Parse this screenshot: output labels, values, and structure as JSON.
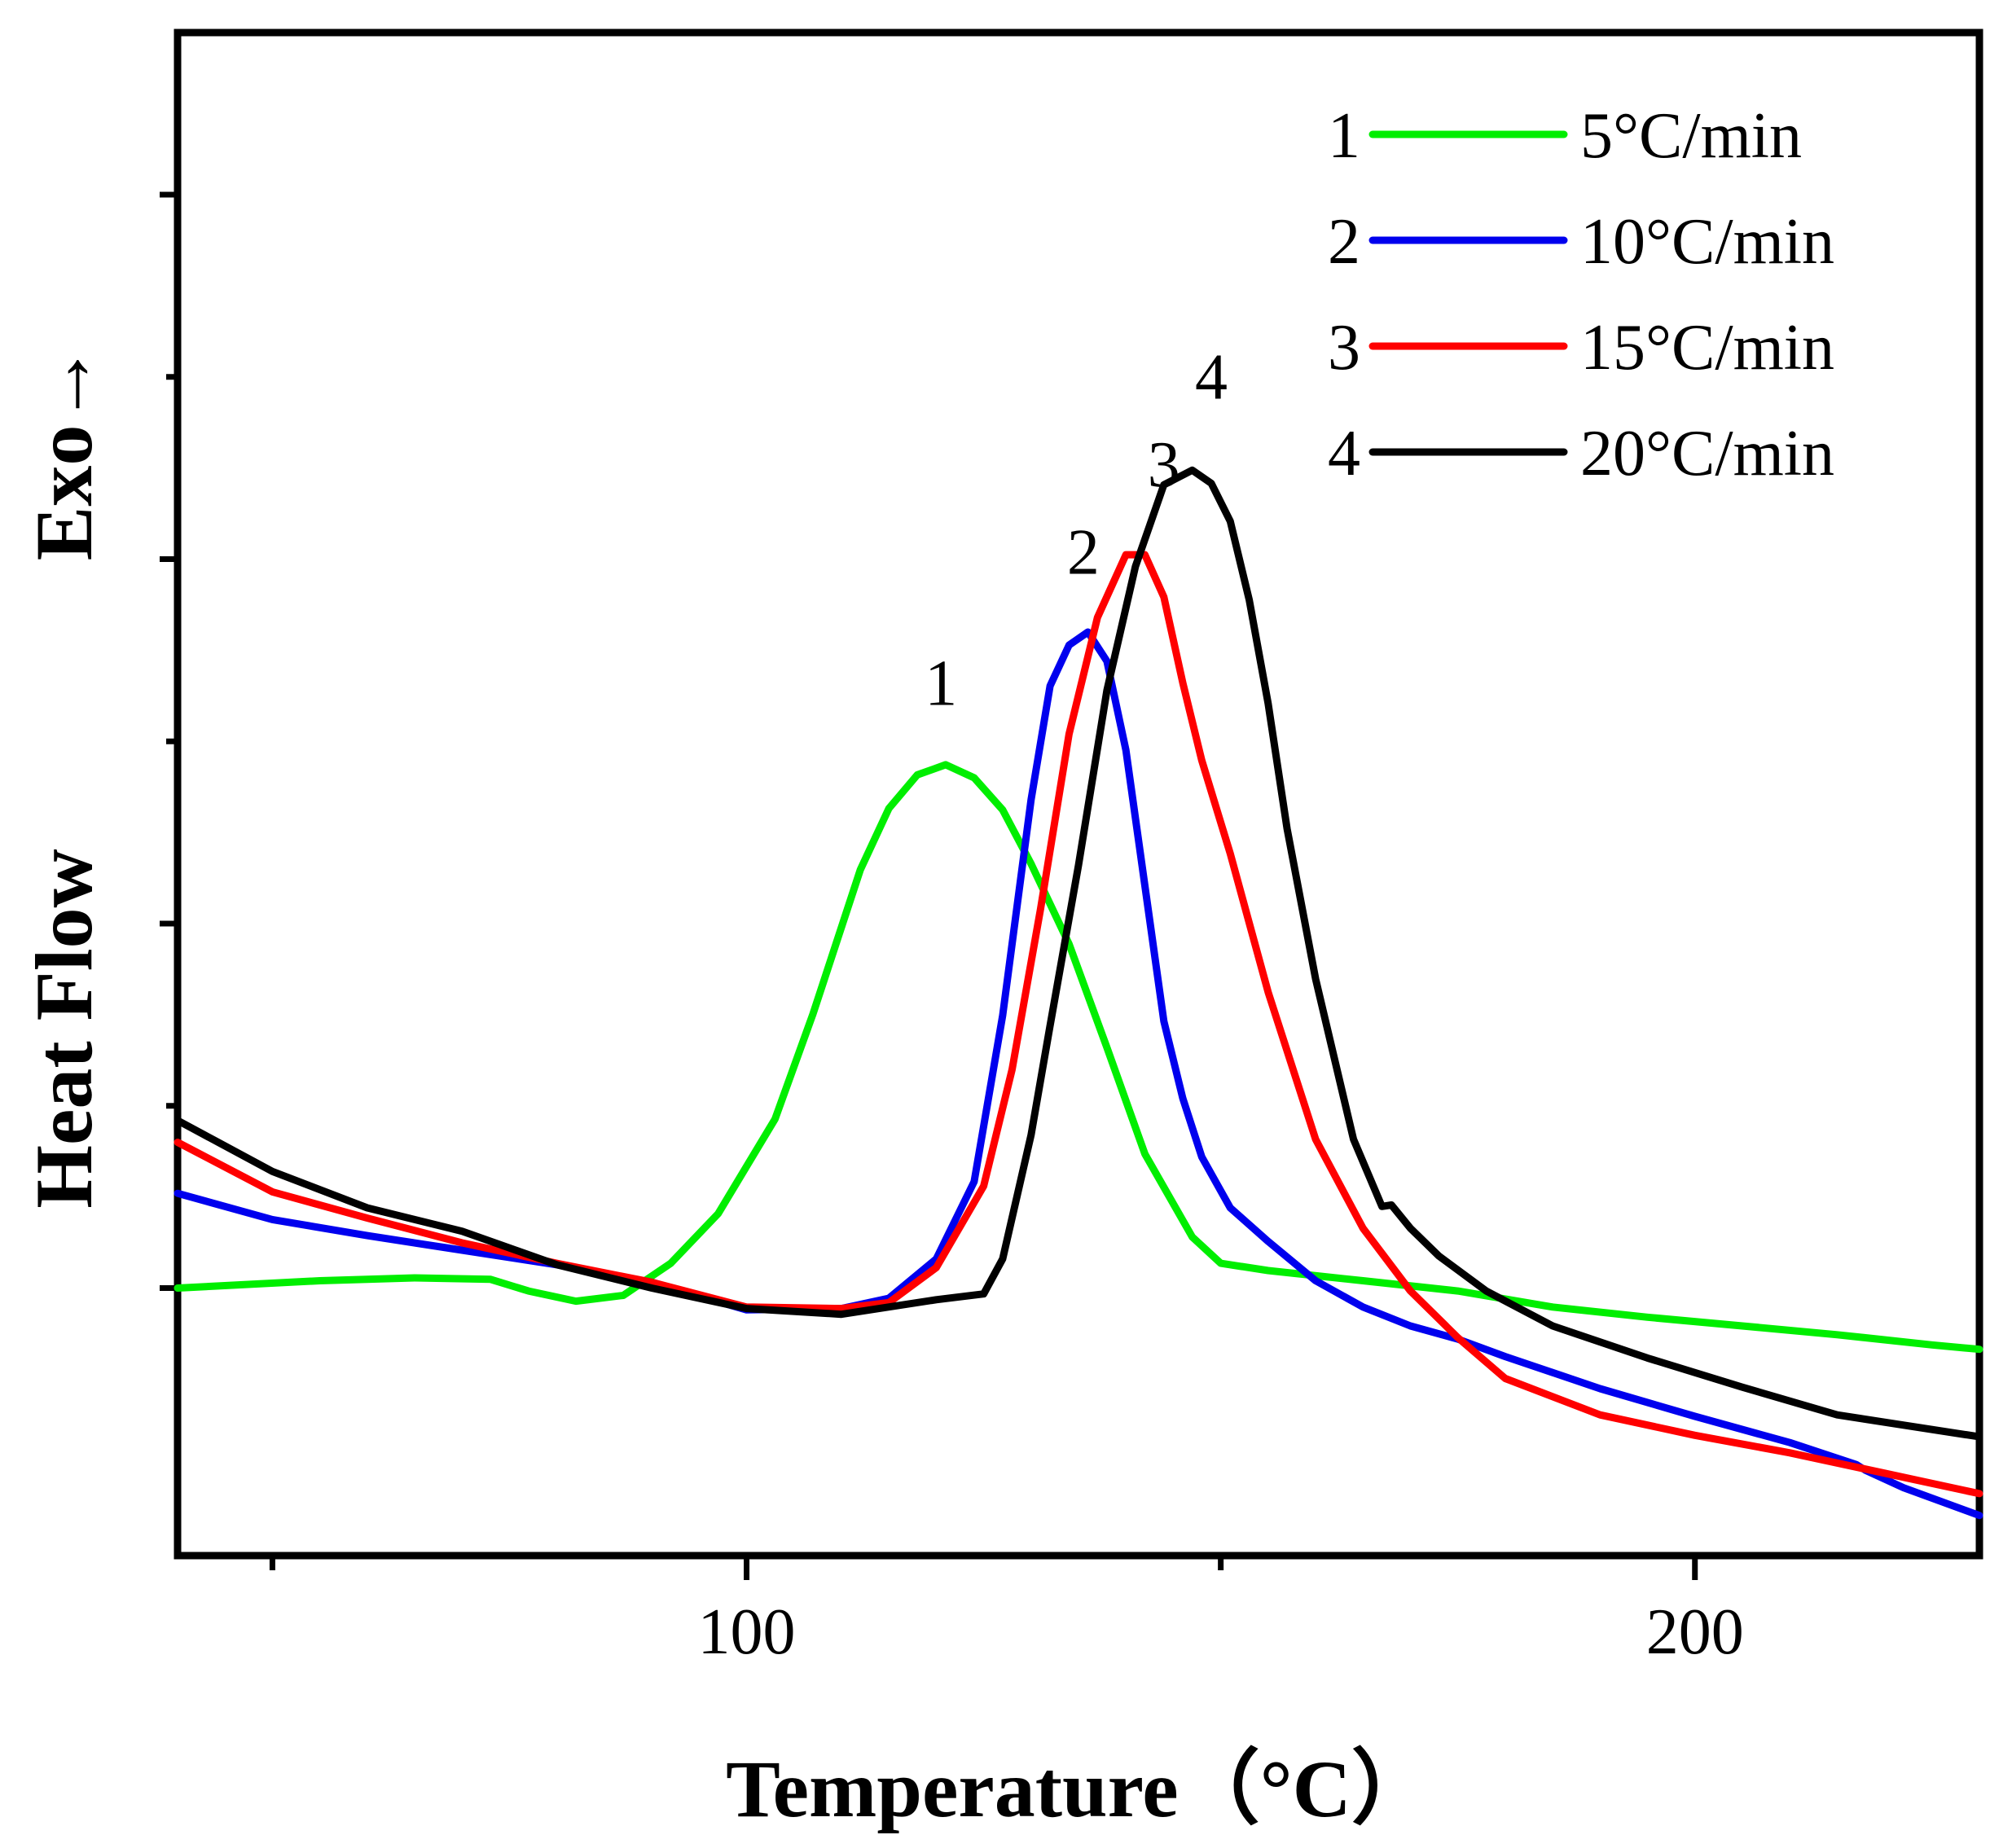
{
  "chart_data": {
    "type": "line",
    "title": "",
    "xlabel": "Temperature（°C）",
    "ylabel": "Heat Flow",
    "ylabel_arrow": "Exo→",
    "xlim": [
      40,
      230
    ],
    "ylim": [
      0,
      100
    ],
    "x_ticks": [
      100,
      200
    ],
    "x_tick_labels": [
      "100",
      "200"
    ],
    "grid": false,
    "legend_position": "top-right",
    "series": [
      {
        "name": "5°C/min",
        "label": "1",
        "color": "#00ee00",
        "x": [
          40,
          55,
          65,
          73,
          77,
          82,
          87,
          92,
          97,
          103,
          107,
          112,
          115,
          118,
          121,
          124,
          127,
          130,
          134,
          138,
          142,
          147,
          150,
          155,
          165,
          175,
          185,
          195,
          205,
          215,
          225,
          230
        ],
        "y": [
          15,
          15.5,
          15.7,
          15.6,
          14.8,
          14.1,
          14.5,
          16.7,
          20.1,
          26.6,
          33.8,
          43.7,
          47.9,
          50.2,
          50.9,
          50.0,
          47.8,
          44.1,
          38.6,
          31.5,
          24.2,
          18.5,
          16.7,
          16.2,
          15.5,
          14.8,
          13.7,
          13.0,
          12.4,
          11.8,
          11.1,
          10.8
        ]
      },
      {
        "name": "10°C/min",
        "label": "2",
        "color": "#0000ee",
        "x": [
          40,
          50,
          60,
          70,
          80,
          90,
          100,
          110,
          115,
          120,
          124,
          127,
          130,
          132,
          134,
          136,
          138,
          140,
          142,
          144,
          146,
          148,
          151,
          155,
          160,
          165,
          170,
          175,
          180,
          190,
          200,
          210,
          217,
          218,
          222,
          230
        ],
        "y": [
          21.5,
          19.7,
          18.6,
          17.6,
          16.6,
          15.4,
          13.5,
          13.6,
          14.3,
          17.0,
          22.3,
          33.7,
          48.5,
          56.3,
          59.1,
          60.0,
          58.0,
          51.9,
          42.6,
          33.3,
          28.0,
          24.0,
          20.5,
          18.2,
          15.5,
          13.7,
          12.4,
          11.5,
          10.3,
          8.1,
          6.2,
          4.4,
          2.9,
          2.5,
          1.3,
          -0.6
        ]
      },
      {
        "name": "15°C/min",
        "label": "3",
        "color": "#ff0000",
        "x": [
          40,
          50,
          60,
          70,
          80,
          90,
          100,
          110,
          115,
          120,
          125,
          128,
          131,
          134,
          137,
          140,
          142,
          144,
          146,
          148,
          151,
          155,
          160,
          165,
          170,
          175,
          180,
          190,
          200,
          210,
          220,
          230
        ],
        "y": [
          25,
          21.6,
          19.8,
          18.1,
          16.7,
          15.4,
          13.7,
          13.6,
          14.0,
          16.4,
          22.0,
          30.0,
          41.0,
          53.0,
          61.0,
          65.3,
          65.3,
          62.4,
          56.5,
          51.2,
          44.8,
          35.3,
          25.2,
          19.1,
          14.8,
          11.6,
          8.8,
          6.3,
          4.9,
          3.7,
          2.3,
          0.9
        ]
      },
      {
        "name": "20°C/min",
        "label": "4",
        "color": "#000000",
        "x": [
          40,
          50,
          60,
          70,
          80,
          90,
          100,
          110,
          120,
          125,
          127,
          130,
          132,
          135,
          138,
          141,
          144,
          147,
          149,
          151,
          153,
          155,
          157,
          160,
          164,
          167,
          168,
          170,
          173,
          178,
          185,
          195,
          205,
          215,
          230
        ],
        "y": [
          26.5,
          23,
          20.5,
          18.9,
          16.6,
          15.0,
          13.6,
          13.2,
          14.2,
          14.6,
          17.0,
          25.5,
          33.0,
          44.0,
          56.0,
          64.5,
          70.1,
          71.1,
          70.2,
          67.6,
          62.2,
          55.1,
          46.5,
          36.2,
          25.2,
          20.6,
          20.7,
          19.1,
          17.2,
          14.8,
          12.4,
          10.2,
          8.2,
          6.3,
          4.8
        ]
      }
    ],
    "annotations": [
      {
        "text": "1",
        "x": 120.5,
        "y": 55
      },
      {
        "text": "2",
        "x": 135.5,
        "y": 64
      },
      {
        "text": "3",
        "x": 144.0,
        "y": 70
      },
      {
        "text": "4",
        "x": 149.0,
        "y": 76
      }
    ]
  }
}
